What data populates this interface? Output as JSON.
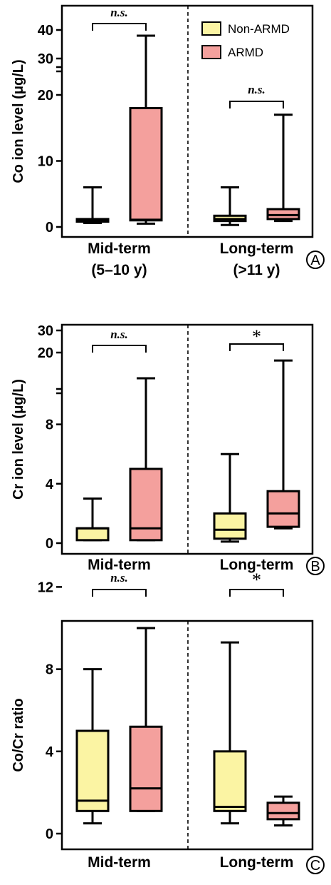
{
  "colors": {
    "non_armd": "#fbf4a3",
    "armd": "#f4a09d"
  },
  "legend": {
    "items": [
      "Non-ARMD",
      "ARMD"
    ]
  },
  "chart_data": [
    {
      "type": "box",
      "panel_label": "A",
      "ylabel": "Co ion level (μg/L)",
      "axis_break": true,
      "yticks": [
        {
          "label": "0",
          "value": 0
        },
        {
          "label": "10",
          "value": 10
        },
        {
          "label": "20",
          "value": 20
        },
        {
          "label": "30",
          "value": 30
        },
        {
          "label": "40",
          "value": 40
        }
      ],
      "groups": [
        {
          "label_lines": [
            "Mid-term",
            "(5–10 y)"
          ],
          "significance": "n.s.",
          "sig_style": "italic",
          "boxes": [
            {
              "series": "Non-ARMD",
              "min": 0.6,
              "q1": 0.8,
              "median": 1.0,
              "q3": 1.2,
              "max": 6
            },
            {
              "series": "ARMD",
              "min": 0.5,
              "q1": 1.0,
              "median": 1.1,
              "q3": 18,
              "max": 38
            }
          ]
        },
        {
          "label_lines": [
            "Long-term",
            "(>11 y)"
          ],
          "significance": "n.s.",
          "sig_style": "italic",
          "boxes": [
            {
              "series": "Non-ARMD",
              "min": 0.3,
              "q1": 0.9,
              "median": 1.2,
              "q3": 1.7,
              "max": 6
            },
            {
              "series": "ARMD",
              "min": 0.9,
              "q1": 1.2,
              "median": 1.8,
              "q3": 2.7,
              "max": 17
            }
          ]
        }
      ]
    },
    {
      "type": "box",
      "panel_label": "B",
      "ylabel": "Cr ion level (μg/L)",
      "axis_break": true,
      "yticks": [
        {
          "label": "0",
          "value": 0
        },
        {
          "label": "4",
          "value": 4
        },
        {
          "label": "8",
          "value": 8
        },
        {
          "label": "20",
          "value": 20
        },
        {
          "label": "30",
          "value": 30
        }
      ],
      "groups": [
        {
          "label_lines": [
            "Mid-term"
          ],
          "significance": "n.s.",
          "sig_style": "italic",
          "boxes": [
            {
              "series": "Non-ARMD",
              "min": 0.2,
              "q1": 0.2,
              "median": 1.0,
              "q3": 1.0,
              "max": 3
            },
            {
              "series": "ARMD",
              "min": 0.2,
              "q1": 0.2,
              "median": 1.0,
              "q3": 5.0,
              "max": 13.5
            }
          ]
        },
        {
          "label_lines": [
            "Long-term"
          ],
          "significance": "*",
          "sig_style": "star",
          "boxes": [
            {
              "series": "Non-ARMD",
              "min": 0.1,
              "q1": 0.3,
              "median": 0.9,
              "q3": 2.0,
              "max": 6
            },
            {
              "series": "ARMD",
              "min": 1.0,
              "q1": 1.1,
              "median": 2.0,
              "q3": 3.5,
              "max": 18
            }
          ]
        }
      ]
    },
    {
      "type": "box",
      "panel_label": "C",
      "ylabel": "Co/Cr ratio",
      "axis_break": false,
      "yticks": [
        {
          "label": "0",
          "value": 0
        },
        {
          "label": "4",
          "value": 4
        },
        {
          "label": "8",
          "value": 8
        },
        {
          "label": "12",
          "value": 12
        }
      ],
      "groups": [
        {
          "label_lines": [
            "Mid-term"
          ],
          "significance": "n.s.",
          "sig_style": "italic",
          "boxes": [
            {
              "series": "Non-ARMD",
              "min": 0.5,
              "q1": 1.1,
              "median": 1.6,
              "q3": 5.0,
              "max": 8
            },
            {
              "series": "ARMD",
              "min": 1.1,
              "q1": 1.1,
              "median": 2.2,
              "q3": 5.2,
              "max": 10
            }
          ]
        },
        {
          "label_lines": [
            "Long-term"
          ],
          "significance": "*",
          "sig_style": "star",
          "boxes": [
            {
              "series": "Non-ARMD",
              "min": 0.5,
              "q1": 1.1,
              "median": 1.3,
              "q3": 4.0,
              "max": 9.3
            },
            {
              "series": "ARMD",
              "min": 0.4,
              "q1": 0.7,
              "median": 1.0,
              "q3": 1.5,
              "max": 1.8
            }
          ]
        }
      ]
    }
  ]
}
